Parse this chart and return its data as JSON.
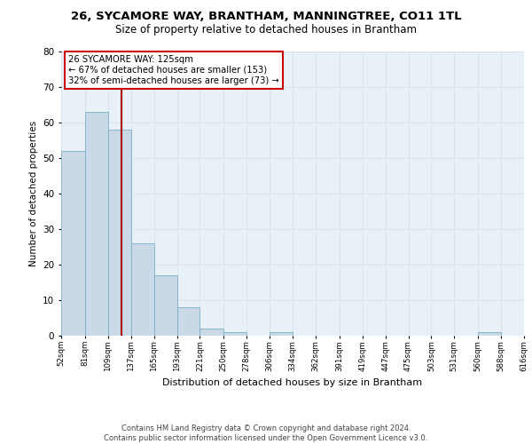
{
  "title1": "26, SYCAMORE WAY, BRANTHAM, MANNINGTREE, CO11 1TL",
  "title2": "Size of property relative to detached houses in Brantham",
  "xlabel": "Distribution of detached houses by size in Brantham",
  "ylabel": "Number of detached properties",
  "bar_values": [
    52,
    63,
    58,
    26,
    17,
    8,
    2,
    1,
    0,
    1,
    0,
    0,
    0,
    0,
    0,
    0,
    0,
    0,
    1
  ],
  "bin_labels": [
    "52sqm",
    "81sqm",
    "109sqm",
    "137sqm",
    "165sqm",
    "193sqm",
    "221sqm",
    "250sqm",
    "278sqm",
    "306sqm",
    "334sqm",
    "362sqm",
    "391sqm",
    "419sqm",
    "447sqm",
    "475sqm",
    "503sqm",
    "531sqm",
    "560sqm",
    "588sqm",
    "616sqm"
  ],
  "bar_color": "#c9d9e8",
  "bar_edge_color": "#7aafc5",
  "annotation_text": "26 SYCAMORE WAY: 125sqm\n← 67% of detached houses are smaller (153)\n32% of semi-detached houses are larger (73) →",
  "annotation_box_color": "#ffffff",
  "annotation_box_edge_color": "#cc0000",
  "vline_color": "#aa0000",
  "ylim": [
    0,
    80
  ],
  "yticks": [
    0,
    10,
    20,
    30,
    40,
    50,
    60,
    70,
    80
  ],
  "grid_color": "#d8e4ee",
  "background_color": "#e8f0f8",
  "footer_text": "Contains HM Land Registry data © Crown copyright and database right 2024.\nContains public sector information licensed under the Open Government Licence v3.0."
}
